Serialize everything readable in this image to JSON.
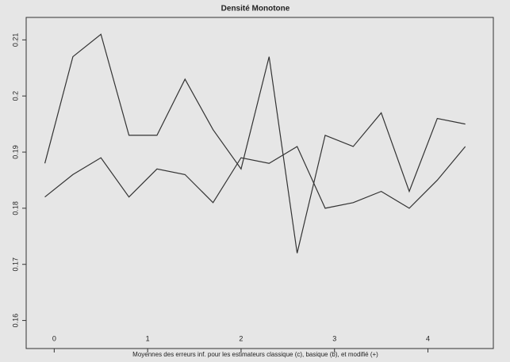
{
  "chart_data": {
    "type": "line",
    "title": "Densité Monotone",
    "x_label": "Moyennes des erreurs inf. pour les estimateurs classique (c), basique (b), et modifié (+)",
    "x": [
      -0.1,
      0.2,
      0.5,
      0.8,
      1.1,
      1.4,
      1.7,
      2.0,
      2.3,
      2.6,
      2.9,
      3.2,
      3.5,
      3.8,
      4.1,
      4.4
    ],
    "series": [
      {
        "color": "#333333",
        "values": [
          0.188,
          0.207,
          0.211,
          0.193,
          0.193,
          0.203,
          0.194,
          0.187,
          0.207,
          0.172,
          0.193,
          0.191,
          0.197,
          0.183,
          0.196,
          0.195
        ]
      },
      {
        "color": "#333333",
        "values": [
          0.182,
          0.186,
          0.189,
          0.182,
          0.187,
          0.186,
          0.181,
          0.189,
          0.188,
          0.191,
          0.18,
          0.181,
          0.183,
          0.18,
          0.185,
          0.191
        ]
      }
    ],
    "xlim": [
      -0.3,
      4.7
    ],
    "xticks": [
      0,
      1,
      2,
      3,
      4
    ],
    "ylim": [
      0.155,
      0.214
    ],
    "yticks": [
      0.16,
      0.17,
      0.18,
      0.19,
      0.2,
      0.21
    ]
  }
}
